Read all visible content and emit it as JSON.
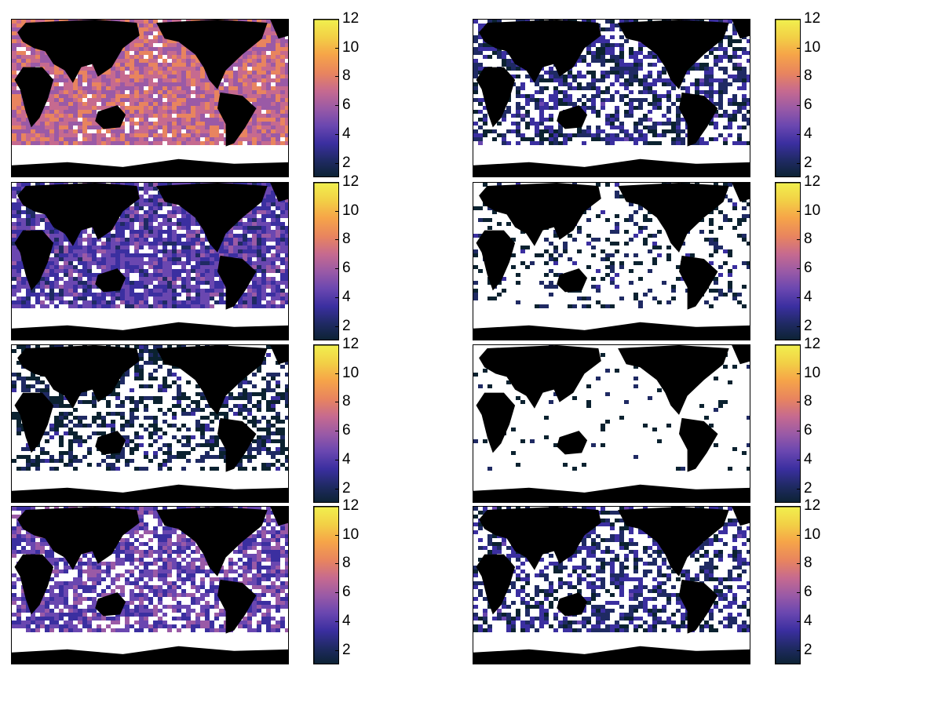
{
  "figure": {
    "panel_count": 8,
    "colormap": {
      "name": "thermal-like",
      "colors": [
        "#0b2230",
        "#1f2a63",
        "#3b2fa0",
        "#6a47b0",
        "#9a5aa6",
        "#c66a8f",
        "#e8845f",
        "#f6a548",
        "#f2d046",
        "#f1f04e"
      ],
      "land_color": "#000000",
      "missing_color": "#ffffff"
    },
    "colorbar": {
      "range": [
        1,
        12
      ],
      "ticks": [
        "2",
        "4",
        "6",
        "8",
        "10",
        "12"
      ],
      "tick_values": [
        2,
        4,
        6,
        8,
        10,
        12
      ]
    },
    "panels": [
      {
        "id": "row1-left",
        "coverage": 0.95,
        "mean_level": 7.0
      },
      {
        "id": "row1-right",
        "coverage": 0.55,
        "mean_level": 2.5
      },
      {
        "id": "row2-left",
        "coverage": 0.85,
        "mean_level": 4.0
      },
      {
        "id": "row2-right",
        "coverage": 0.2,
        "mean_level": 1.5
      },
      {
        "id": "row3-left",
        "coverage": 0.45,
        "mean_level": 1.5
      },
      {
        "id": "row3-right",
        "coverage": 0.06,
        "mean_level": 1.2
      },
      {
        "id": "row4-left",
        "coverage": 0.7,
        "mean_level": 4.5
      },
      {
        "id": "row4-right",
        "coverage": 0.5,
        "mean_level": 2.5
      }
    ]
  }
}
